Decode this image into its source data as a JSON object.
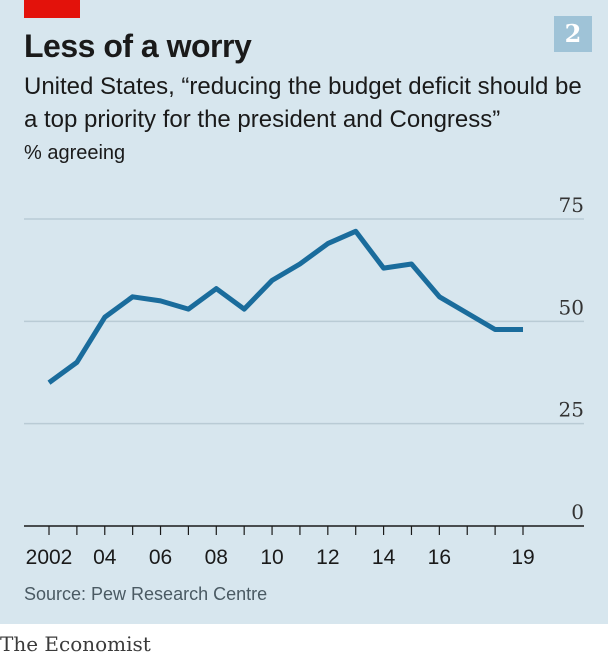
{
  "header": {
    "title": "Less of a worry",
    "chart_number": "2",
    "subtitle": "United States, “reducing the budget deficit should be a top priority for the president and Congress”",
    "unit": "% agreeing"
  },
  "footer": {
    "source": "Source: Pew Research Centre",
    "brand": "The Economist"
  },
  "colors": {
    "line": "#1a6c9c",
    "background": "#d7e6ee",
    "accent_red": "#e3120b",
    "gridline": "#b9cbd5"
  },
  "chart_data": {
    "type": "line",
    "title": "Less of a worry",
    "subtitle": "United States, “reducing the budget deficit should be a top priority for the president and Congress”",
    "ylabel": "% agreeing",
    "ylim": [
      0,
      75
    ],
    "xlim": [
      2002,
      2019
    ],
    "yticks": [
      0,
      25,
      50,
      75
    ],
    "ytick_labels": [
      "0",
      "25",
      "50",
      "75"
    ],
    "xticks": [
      2002,
      2004,
      2006,
      2008,
      2010,
      2012,
      2014,
      2016,
      2019
    ],
    "xtick_labels": [
      "2002",
      "04",
      "06",
      "08",
      "10",
      "12",
      "14",
      "16",
      "19"
    ],
    "grid": true,
    "series": [
      {
        "x": [
          2002,
          2003,
          2004,
          2005,
          2006,
          2007,
          2008,
          2009,
          2010,
          2011,
          2012,
          2013,
          2014,
          2015,
          2016,
          2017,
          2018,
          2019
        ],
        "values": [
          35,
          40,
          51,
          56,
          55,
          53,
          58,
          53,
          60,
          64,
          69,
          72,
          63,
          64,
          56,
          52,
          48,
          48
        ]
      }
    ],
    "source": "Source: Pew Research Centre"
  }
}
